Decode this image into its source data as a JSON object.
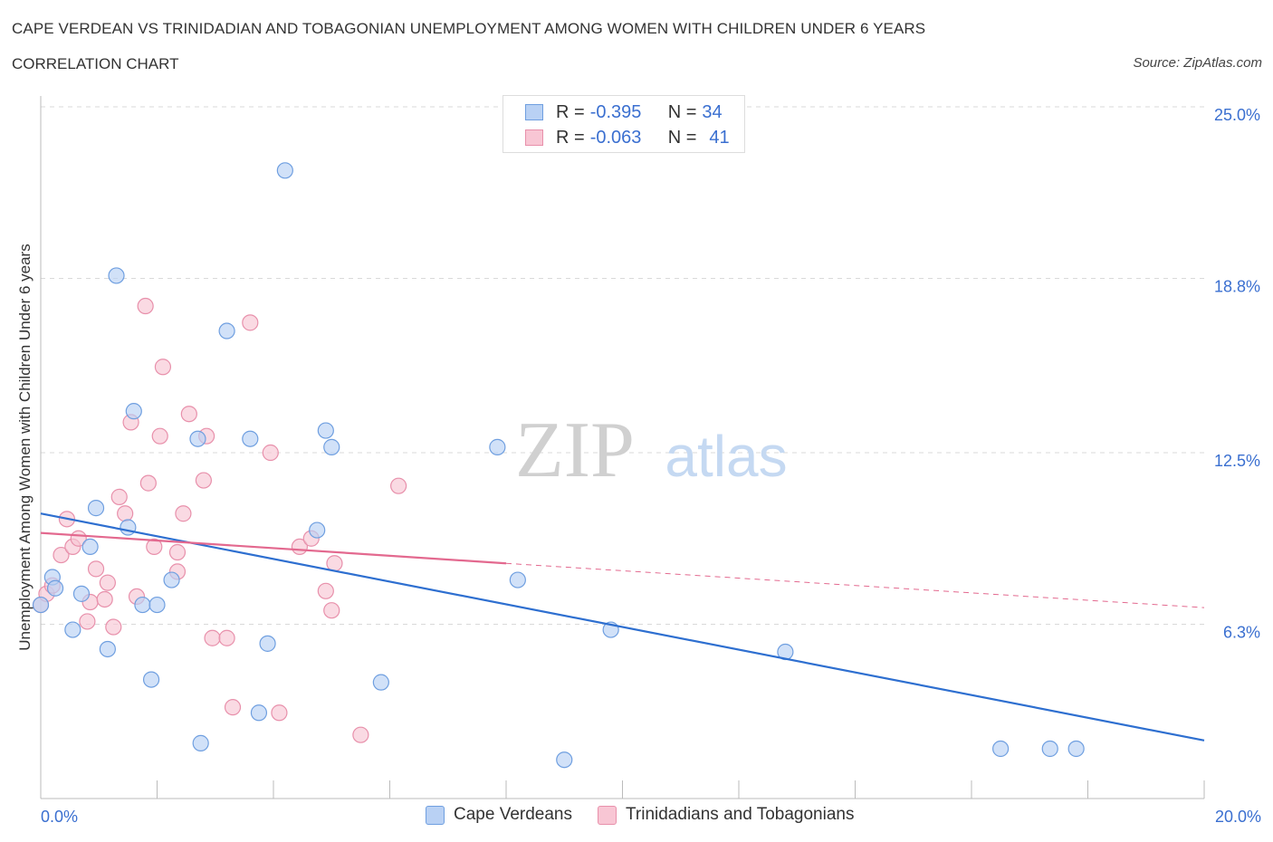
{
  "title": "CAPE VERDEAN VS TRINIDADIAN AND TOBAGONIAN UNEMPLOYMENT AMONG WOMEN WITH CHILDREN UNDER 6 YEARS",
  "subtitle": "CORRELATION CHART",
  "source": "Source: ZipAtlas.com",
  "watermark": {
    "zip": "ZIP",
    "atlas": "atlas"
  },
  "legend_stats": [
    {
      "r_label": "R =",
      "r_value": "-0.395",
      "n_label": "N =",
      "n_value": "34"
    },
    {
      "r_label": "R =",
      "r_value": "-0.063",
      "n_label": "N =",
      "n_value": "41"
    }
  ],
  "colors": {
    "blue_fill": "#b9d1f4",
    "blue_stroke": "#6f9fe0",
    "blue_line": "#2e6fd0",
    "pink_fill": "#f8c6d4",
    "pink_stroke": "#e890ab",
    "pink_line": "#e3698f",
    "grid": "#d9d9d9",
    "axis_text": "#3a6fd0"
  },
  "chart_data": {
    "type": "scatter",
    "title": "CAPE VERDEAN VS TRINIDADIAN AND TOBAGONIAN UNEMPLOYMENT AMONG WOMEN WITH CHILDREN UNDER 6 YEARS",
    "xlabel": "",
    "ylabel": "Unemployment Among Women with Children Under 6 years",
    "xlim": [
      0,
      20
    ],
    "ylim": [
      0,
      25
    ],
    "x_tick_labels": [
      {
        "value": 0,
        "label": "0.0%"
      },
      {
        "value": 20,
        "label": "20.0%"
      }
    ],
    "y_tick_labels": [
      {
        "value": 6.3,
        "label": "6.3%"
      },
      {
        "value": 12.5,
        "label": "12.5%"
      },
      {
        "value": 18.8,
        "label": "18.8%"
      },
      {
        "value": 25.0,
        "label": "25.0%"
      }
    ],
    "series": [
      {
        "name": "Cape Verdeans",
        "points": [
          [
            0.0,
            7.0
          ],
          [
            0.2,
            8.0
          ],
          [
            0.25,
            7.6
          ],
          [
            0.55,
            6.1
          ],
          [
            0.7,
            7.4
          ],
          [
            0.85,
            9.1
          ],
          [
            0.95,
            10.5
          ],
          [
            1.15,
            5.4
          ],
          [
            1.3,
            18.9
          ],
          [
            1.5,
            9.8
          ],
          [
            1.6,
            14.0
          ],
          [
            1.75,
            7.0
          ],
          [
            1.9,
            4.3
          ],
          [
            2.0,
            7.0
          ],
          [
            2.25,
            7.9
          ],
          [
            2.7,
            13.0
          ],
          [
            2.75,
            2.0
          ],
          [
            3.2,
            16.9
          ],
          [
            3.6,
            13.0
          ],
          [
            3.75,
            3.1
          ],
          [
            3.9,
            5.6
          ],
          [
            4.2,
            22.7
          ],
          [
            4.75,
            9.7
          ],
          [
            4.9,
            13.3
          ],
          [
            5.0,
            12.7
          ],
          [
            5.85,
            4.2
          ],
          [
            7.85,
            12.7
          ],
          [
            8.2,
            7.9
          ],
          [
            9.0,
            1.4
          ],
          [
            9.8,
            6.1
          ],
          [
            12.8,
            5.3
          ],
          [
            16.5,
            1.8
          ],
          [
            17.35,
            1.8
          ],
          [
            17.8,
            1.8
          ]
        ],
        "trend": {
          "x": [
            0,
            20
          ],
          "y": [
            10.3,
            2.1
          ]
        }
      },
      {
        "name": "Trinidadians and Tobagonians",
        "points": [
          [
            0.0,
            7.0
          ],
          [
            0.1,
            7.4
          ],
          [
            0.2,
            7.7
          ],
          [
            0.35,
            8.8
          ],
          [
            0.45,
            10.1
          ],
          [
            0.55,
            9.1
          ],
          [
            0.65,
            9.4
          ],
          [
            0.8,
            6.4
          ],
          [
            0.85,
            7.1
          ],
          [
            0.95,
            8.3
          ],
          [
            1.1,
            7.2
          ],
          [
            1.15,
            7.8
          ],
          [
            1.25,
            6.2
          ],
          [
            1.35,
            10.9
          ],
          [
            1.45,
            10.3
          ],
          [
            1.55,
            13.6
          ],
          [
            1.65,
            7.3
          ],
          [
            1.8,
            17.8
          ],
          [
            1.85,
            11.4
          ],
          [
            1.95,
            9.1
          ],
          [
            2.05,
            13.1
          ],
          [
            2.1,
            15.6
          ],
          [
            2.35,
            8.9
          ],
          [
            2.35,
            8.2
          ],
          [
            2.45,
            10.3
          ],
          [
            2.55,
            13.9
          ],
          [
            2.8,
            11.5
          ],
          [
            2.85,
            13.1
          ],
          [
            2.95,
            5.8
          ],
          [
            3.2,
            5.8
          ],
          [
            3.3,
            3.3
          ],
          [
            3.6,
            17.2
          ],
          [
            3.95,
            12.5
          ],
          [
            4.1,
            3.1
          ],
          [
            4.45,
            9.1
          ],
          [
            4.65,
            9.4
          ],
          [
            4.9,
            7.5
          ],
          [
            5.0,
            6.8
          ],
          [
            5.05,
            8.5
          ],
          [
            5.5,
            2.3
          ],
          [
            6.15,
            11.3
          ]
        ],
        "trend": {
          "x": [
            0,
            8
          ],
          "y": [
            9.6,
            8.5
          ],
          "dashed_extension": {
            "x": [
              8,
              20
            ],
            "y": [
              8.5,
              6.9
            ]
          }
        }
      }
    ],
    "legend": [
      "Cape Verdeans",
      "Trinidadians and Tobagonians"
    ],
    "grid": true
  }
}
